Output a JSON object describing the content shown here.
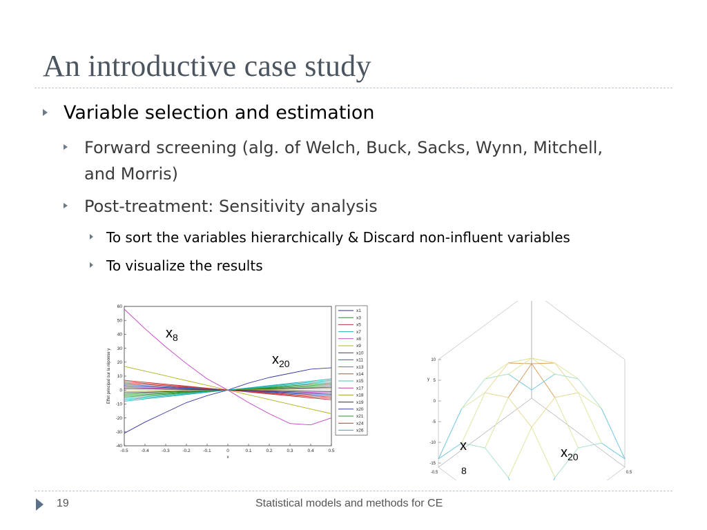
{
  "slide": {
    "title": "An introductive case study",
    "bullets": {
      "l1": "Variable selection and estimation",
      "l2a_line1": "Forward screening (alg. of  Welch, Buck, Sacks, Wynn, Mitchell,",
      "l2a_line2": "and Morris)",
      "l2b": "Post-treatment: Sensitivity analysis",
      "l3a": "To sort the variables hierarchically  & Discard non-influent variables",
      "l3b": "To visualize the results"
    },
    "annotations": {
      "x8_base": "x",
      "x8_sub": "8",
      "x20_base": "x",
      "x20_sub": "20"
    },
    "footer": {
      "page_number": "19",
      "title": "Statistical models and methods for CE"
    }
  },
  "chart_data": [
    {
      "type": "line",
      "xlabel": "x",
      "ylabel": "Effet principal sur la réponse y",
      "xlim": [
        -0.5,
        0.5
      ],
      "ylim": [
        -40,
        60
      ],
      "xticks": [
        "-0.5",
        "-0.4",
        "-0.3",
        "-0.2",
        "-0.1",
        "0",
        "0.1",
        "0.2",
        "0.3",
        "0.4",
        "0.5"
      ],
      "yticks": [
        "60",
        "50",
        "40",
        "30",
        "20",
        "10",
        "0",
        "-10",
        "-20",
        "-30",
        "-40"
      ],
      "legend_position": "right",
      "x": [
        -0.5,
        -0.4,
        -0.3,
        -0.2,
        -0.1,
        0,
        0.1,
        0.2,
        0.3,
        0.4,
        0.5
      ],
      "series": [
        {
          "name": "x1",
          "color": "#2b2b8f",
          "values": [
            3,
            2.4,
            1.8,
            1.2,
            0.6,
            0,
            -0.6,
            -1.2,
            -1.8,
            -2.4,
            -3
          ]
        },
        {
          "name": "x3",
          "color": "#2f8f2f",
          "values": [
            -5,
            -4,
            -3,
            -2,
            -1,
            0,
            1,
            2,
            3,
            4,
            5
          ]
        },
        {
          "name": "x5",
          "color": "#c03030",
          "values": [
            5,
            4,
            3,
            2,
            1,
            0,
            -1,
            -2,
            -3,
            -4,
            -5
          ]
        },
        {
          "name": "x7",
          "color": "#20b0b0",
          "values": [
            -8,
            -6.4,
            -4.8,
            -3.2,
            -1.6,
            0,
            1.6,
            3.2,
            4.8,
            6.4,
            8
          ]
        },
        {
          "name": "x8",
          "color": "#c040c0",
          "values": [
            58,
            44,
            31,
            19,
            8,
            0,
            -9,
            -17,
            -24,
            -25,
            -20
          ]
        },
        {
          "name": "x9",
          "color": "#b0b020",
          "values": [
            17,
            13.6,
            10.2,
            6.8,
            3.4,
            0,
            -3.4,
            -6.8,
            -10.2,
            -13.6,
            -17
          ]
        },
        {
          "name": "x10",
          "color": "#404040",
          "values": [
            -2,
            -1.6,
            -1.2,
            -0.8,
            -0.4,
            0,
            0.4,
            0.8,
            1.2,
            1.6,
            2
          ]
        },
        {
          "name": "x11",
          "color": "#3060c0",
          "values": [
            4,
            3.2,
            2.4,
            1.6,
            0.8,
            0,
            -0.8,
            -1.6,
            -2.4,
            -3.2,
            -4
          ]
        },
        {
          "name": "x13",
          "color": "#30a030",
          "values": [
            -3,
            -2.4,
            -1.8,
            -1.2,
            -0.6,
            0,
            0.6,
            1.2,
            1.8,
            2.4,
            3
          ]
        },
        {
          "name": "x14",
          "color": "#d04040",
          "values": [
            6,
            4.8,
            3.6,
            2.4,
            1.2,
            0,
            -1.2,
            -2.4,
            -3.6,
            -4.8,
            -6
          ]
        },
        {
          "name": "x15",
          "color": "#40c0c0",
          "values": [
            -6,
            -4.8,
            -3.6,
            -2.4,
            -1.2,
            0,
            1.2,
            2.4,
            3.6,
            4.8,
            6
          ]
        },
        {
          "name": "x17",
          "color": "#b040b0",
          "values": [
            2,
            1.6,
            1.2,
            0.8,
            0.4,
            0,
            -0.4,
            -0.8,
            -1.2,
            -1.6,
            -2
          ]
        },
        {
          "name": "x18",
          "color": "#a0a030",
          "values": [
            -1,
            -0.8,
            -0.6,
            -0.4,
            -0.2,
            0,
            0.2,
            0.4,
            0.6,
            0.8,
            1
          ]
        },
        {
          "name": "x19",
          "color": "#303030",
          "values": [
            1,
            0.8,
            0.6,
            0.4,
            0.2,
            0,
            -0.2,
            -0.4,
            -0.6,
            -0.8,
            -1
          ]
        },
        {
          "name": "x20",
          "color": "#3535a0",
          "values": [
            -31,
            -23,
            -16,
            -9,
            -4,
            0,
            5,
            9,
            12,
            15,
            16
          ]
        },
        {
          "name": "x21",
          "color": "#2f8f2f",
          "values": [
            -4,
            -3.2,
            -2.4,
            -1.6,
            -0.8,
            0,
            0.8,
            1.6,
            2.4,
            3.2,
            4
          ]
        },
        {
          "name": "x24",
          "color": "#c03030",
          "values": [
            7,
            5.6,
            4.2,
            2.8,
            1.4,
            0,
            -1.4,
            -2.8,
            -4.2,
            -5.6,
            -7
          ]
        },
        {
          "name": "x26",
          "color": "#20b0b0",
          "values": [
            -7,
            -5.6,
            -4.2,
            -2.8,
            -1.4,
            0,
            1.4,
            2.8,
            4.2,
            5.6,
            7
          ]
        }
      ]
    },
    {
      "type": "surface",
      "zlabel": "y",
      "zlim": [
        -15,
        10
      ],
      "zticks": [
        "10",
        "5",
        "0",
        "-5",
        "-10",
        "-15"
      ],
      "axis_a_ticks": [
        "0.5",
        "0",
        "-0.5"
      ],
      "axis_b_ticks": [
        "-0.5",
        "0",
        "0.5"
      ],
      "x": [
        -0.5,
        -0.25,
        0,
        0.25,
        0.5
      ],
      "y": [
        -0.5,
        -0.25,
        0,
        0.25,
        0.5
      ],
      "z": [
        [
          -14,
          -6,
          -3,
          -6,
          -14
        ],
        [
          -6,
          2,
          5,
          2,
          -6
        ],
        [
          -3,
          5,
          9,
          5,
          -3
        ],
        [
          -6,
          2,
          5,
          2,
          -6
        ],
        [
          -14,
          -6,
          -3,
          -6,
          -14
        ]
      ]
    }
  ]
}
